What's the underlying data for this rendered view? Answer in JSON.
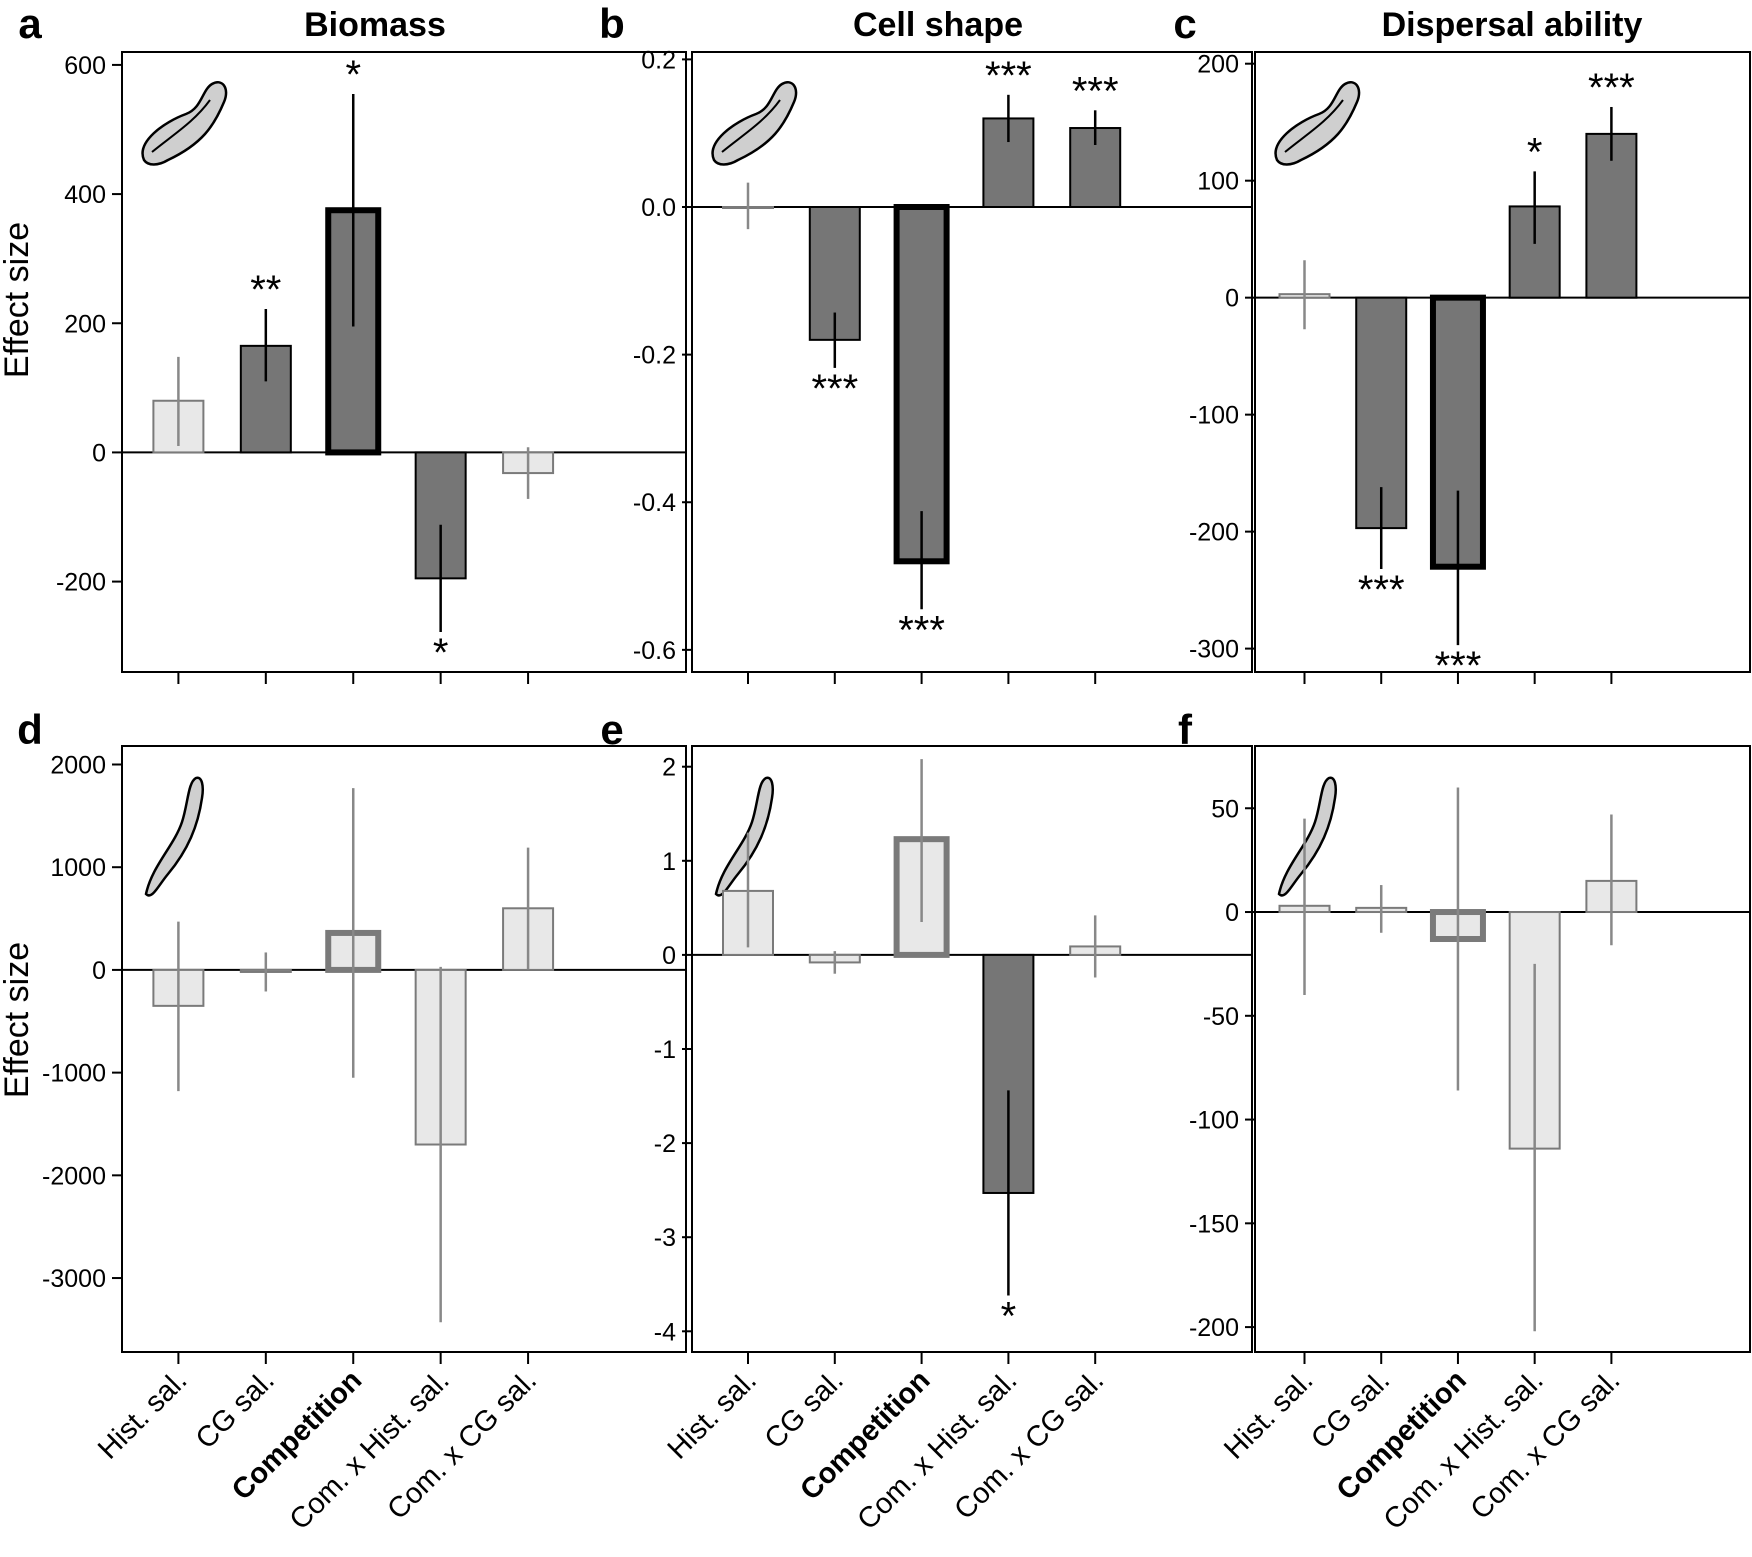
{
  "colors": {
    "significant_fill": "#767676",
    "significant_line": "#000000",
    "nonsig_fill": "#e8e8e8",
    "nonsig_line": "#7a7a7a",
    "nonsig_ref_line": "#888888",
    "axis": "#000000"
  },
  "icons": [
    "cell-oblong-icon",
    "cell-elongated-icon"
  ],
  "chart_data": [
    {
      "type": "bar",
      "panel": "a",
      "title": "Biomass",
      "ylabel": "Effect size",
      "ylim": [
        -340,
        620
      ],
      "yticks": [
        600,
        400,
        200,
        0,
        -200
      ],
      "categories": [
        "Hist. sal.",
        "CG sal.",
        "Competition",
        "Com. x Hist. sal.",
        "Com. x CG sal."
      ],
      "icon": "cell-oblong-icon",
      "show_xlabels": false,
      "bars": [
        {
          "value": 80,
          "err_low": 10,
          "err_high": 148,
          "sig": "",
          "significant": false
        },
        {
          "value": 165,
          "err_low": 110,
          "err_high": 222,
          "sig": "**",
          "significant": true
        },
        {
          "value": 375,
          "err_low": 195,
          "err_high": 555,
          "sig": "*",
          "significant": true,
          "main": true
        },
        {
          "value": -195,
          "err_low": -278,
          "err_high": -112,
          "sig": "*",
          "significant": true
        },
        {
          "value": -32,
          "err_low": -72,
          "err_high": 8,
          "sig": "",
          "significant": false
        }
      ]
    },
    {
      "type": "bar",
      "panel": "b",
      "title": "Cell shape",
      "ylabel": "",
      "ylim": [
        -0.63,
        0.21
      ],
      "yticks": [
        "0.2",
        "0.0",
        "-0.2",
        "-0.4",
        "-0.6"
      ],
      "categories": [
        "Hist. sal.",
        "CG sal.",
        "Competition",
        "Com. x Hist. sal.",
        "Com. x CG sal."
      ],
      "icon": "cell-oblong-icon",
      "show_xlabels": false,
      "bars": [
        {
          "value": 0.0,
          "err_low": -0.03,
          "err_high": 0.033,
          "sig": "",
          "significant": false
        },
        {
          "value": -0.18,
          "err_low": -0.218,
          "err_high": -0.143,
          "sig": "***",
          "significant": true
        },
        {
          "value": -0.48,
          "err_low": -0.545,
          "err_high": -0.412,
          "sig": "***",
          "significant": true,
          "main": true
        },
        {
          "value": 0.12,
          "err_low": 0.088,
          "err_high": 0.152,
          "sig": "***",
          "significant": true
        },
        {
          "value": 0.107,
          "err_low": 0.084,
          "err_high": 0.131,
          "sig": "***",
          "significant": true
        }
      ]
    },
    {
      "type": "bar",
      "panel": "c",
      "title": "Dispersal ability",
      "ylabel": "",
      "ylim": [
        -320,
        210
      ],
      "yticks": [
        200,
        100,
        0,
        -100,
        -200,
        -300
      ],
      "categories": [
        "Hist. sal.",
        "CG sal.",
        "Competition",
        "Com. x Hist. sal.",
        "Com. x CG sal."
      ],
      "icon": "cell-oblong-icon",
      "show_xlabels": false,
      "bars": [
        {
          "value": 3,
          "err_low": -27,
          "err_high": 32,
          "sig": "",
          "significant": false
        },
        {
          "value": -197,
          "err_low": -232,
          "err_high": -162,
          "sig": "***",
          "significant": true
        },
        {
          "value": -230,
          "err_low": -297,
          "err_high": -165,
          "sig": "***",
          "significant": true,
          "main": true
        },
        {
          "value": 78,
          "err_low": 46,
          "err_high": 108,
          "sig": "*",
          "significant": true
        },
        {
          "value": 140,
          "err_low": 117,
          "err_high": 163,
          "sig": "***",
          "significant": true
        }
      ]
    },
    {
      "type": "bar",
      "panel": "d",
      "title": "",
      "ylabel": "Effect size",
      "ylim": [
        -3720,
        2180
      ],
      "yticks": [
        2000,
        1000,
        0,
        -1000,
        -2000,
        -3000
      ],
      "categories": [
        "Hist. sal.",
        "CG sal.",
        "Competition",
        "Com. x Hist. sal.",
        "Com. x CG sal."
      ],
      "icon": "cell-elongated-icon",
      "show_xlabels": true,
      "bars": [
        {
          "value": -350,
          "err_low": -1180,
          "err_high": 470,
          "sig": "",
          "significant": false
        },
        {
          "value": -20,
          "err_low": -210,
          "err_high": 170,
          "sig": "",
          "significant": false
        },
        {
          "value": 360,
          "err_low": -1050,
          "err_high": 1770,
          "sig": "",
          "significant": false,
          "main": true
        },
        {
          "value": -1700,
          "err_low": -3430,
          "err_high": 30,
          "sig": "",
          "significant": false
        },
        {
          "value": 600,
          "err_low": 5,
          "err_high": 1190,
          "sig": "",
          "significant": false
        }
      ]
    },
    {
      "type": "bar",
      "panel": "e",
      "title": "",
      "ylabel": "",
      "ylim": [
        -4.22,
        2.22
      ],
      "yticks": [
        2,
        1,
        0,
        -1,
        -2,
        -3,
        -4
      ],
      "categories": [
        "Hist. sal.",
        "CG sal.",
        "Competition",
        "Com. x Hist. sal.",
        "Com. x CG sal."
      ],
      "icon": "cell-elongated-icon",
      "show_xlabels": true,
      "bars": [
        {
          "value": 0.68,
          "err_low": 0.08,
          "err_high": 1.3,
          "sig": "",
          "significant": false
        },
        {
          "value": -0.08,
          "err_low": -0.2,
          "err_high": 0.04,
          "sig": "",
          "significant": false
        },
        {
          "value": 1.23,
          "err_low": 0.35,
          "err_high": 2.08,
          "sig": "",
          "significant": false,
          "main": true
        },
        {
          "value": -2.53,
          "err_low": -3.62,
          "err_high": -1.44,
          "sig": "*",
          "significant": true
        },
        {
          "value": 0.09,
          "err_low": -0.24,
          "err_high": 0.42,
          "sig": "",
          "significant": false
        }
      ]
    },
    {
      "type": "bar",
      "panel": "f",
      "title": "",
      "ylabel": "",
      "ylim": [
        -212,
        80
      ],
      "yticks": [
        50,
        0,
        -50,
        -100,
        -150,
        -200
      ],
      "categories": [
        "Hist. sal.",
        "CG sal.",
        "Competition",
        "Com. x Hist. sal.",
        "Com. x CG sal."
      ],
      "icon": "cell-elongated-icon",
      "show_xlabels": true,
      "bars": [
        {
          "value": 3,
          "err_low": -40,
          "err_high": 45,
          "sig": "",
          "significant": false
        },
        {
          "value": 2,
          "err_low": -10,
          "err_high": 13,
          "sig": "",
          "significant": false
        },
        {
          "value": -13,
          "err_low": -86,
          "err_high": 60,
          "sig": "",
          "significant": false,
          "main": true
        },
        {
          "value": -114,
          "err_low": -202,
          "err_high": -25,
          "sig": "",
          "significant": false
        },
        {
          "value": 15,
          "err_low": -16,
          "err_high": 47,
          "sig": "",
          "significant": false
        }
      ]
    }
  ]
}
